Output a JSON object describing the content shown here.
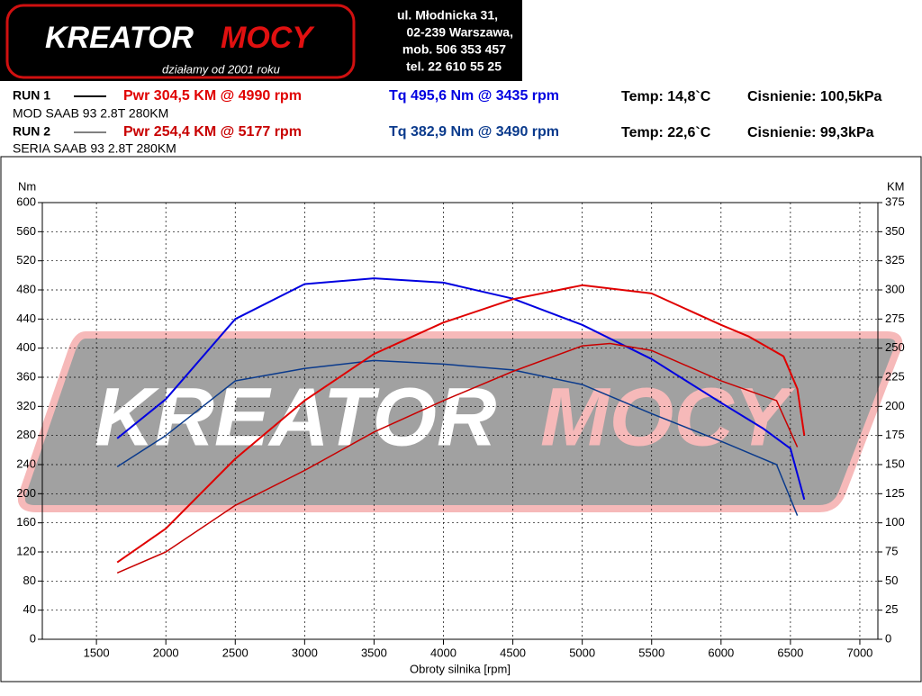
{
  "header": {
    "logo": {
      "left": "KREATOR",
      "right": "MOCY"
    },
    "slogan": "działamy od 2001 roku",
    "address": [
      "ul. Młodnicka 31,",
      "02-239  Warszawa,",
      "mob.  506 353 457",
      "tel.  22 610 55 25"
    ]
  },
  "runs": [
    {
      "label": "RUN 1",
      "pwr": "Pwr  304,5 KM @ 4990 rpm",
      "tq": "Tq 495,6 Nm @ 3435 rpm",
      "temp": "Temp: 14,8`C",
      "pressure": "Cisnienie: 100,5kPa",
      "car": "MOD SAAB 93 2.8T 280KM"
    },
    {
      "label": "RUN 2",
      "pwr": "Pwr  254,4 KM @ 5177 rpm",
      "tq": "Tq 382,9 Nm @ 3490 rpm",
      "temp": "Temp: 22,6`C",
      "pressure": "Cisnienie: 99,3kPa",
      "car": "SERIA SAAB 93 2.8T 280KM"
    }
  ],
  "chart_data": {
    "type": "line",
    "y_label": "Nm",
    "y2_label": "KM",
    "x_label": "Obroty silnika [rpm]",
    "xlim": [
      1110,
      7130
    ],
    "xticks": [
      1500,
      2000,
      2500,
      3000,
      3500,
      4000,
      4500,
      5000,
      5500,
      6000,
      6500,
      7000
    ],
    "ylim": [
      0,
      600
    ],
    "yticks": [
      0,
      40,
      80,
      120,
      160,
      200,
      240,
      280,
      320,
      360,
      400,
      440,
      480,
      520,
      560,
      600
    ],
    "y2lim": [
      0,
      375
    ],
    "y2ticks": [
      0,
      25,
      50,
      75,
      100,
      125,
      150,
      175,
      200,
      225,
      250,
      275,
      300,
      325,
      350,
      375
    ],
    "grid": true,
    "series": [
      {
        "color": "#0000e0",
        "width": 2,
        "x": [
          1650,
          2000,
          2500,
          3000,
          3500,
          4000,
          4500,
          5000,
          5500,
          6000,
          6300,
          6500,
          6600
        ],
        "values": [
          276,
          330,
          440,
          488,
          496,
          490,
          468,
          432,
          385,
          325,
          290,
          262,
          192
        ]
      },
      {
        "color": "#0a3a8c",
        "width": 1.5,
        "x": [
          1650,
          2000,
          2500,
          3000,
          3500,
          4000,
          4500,
          5000,
          5500,
          6000,
          6400,
          6550
        ],
        "values": [
          237,
          280,
          355,
          372,
          383,
          378,
          370,
          350,
          310,
          272,
          240,
          170
        ]
      },
      {
        "color": "#e00000",
        "width": 2,
        "axis": "y2",
        "x": [
          1650,
          2000,
          2500,
          3000,
          3500,
          4000,
          4500,
          5000,
          5500,
          6000,
          6200,
          6450,
          6550,
          6600
        ],
        "values": [
          66,
          95,
          155,
          205,
          245,
          272,
          292,
          304,
          297,
          270,
          260,
          243,
          215,
          175
        ]
      },
      {
        "color": "#c80000",
        "width": 1.5,
        "axis": "y2",
        "x": [
          1650,
          2000,
          2500,
          3000,
          3500,
          4000,
          4500,
          5000,
          5200,
          5500,
          6000,
          6400,
          6550
        ],
        "values": [
          57,
          75,
          115,
          145,
          178,
          205,
          230,
          252,
          254,
          248,
          222,
          205,
          165
        ]
      }
    ]
  }
}
